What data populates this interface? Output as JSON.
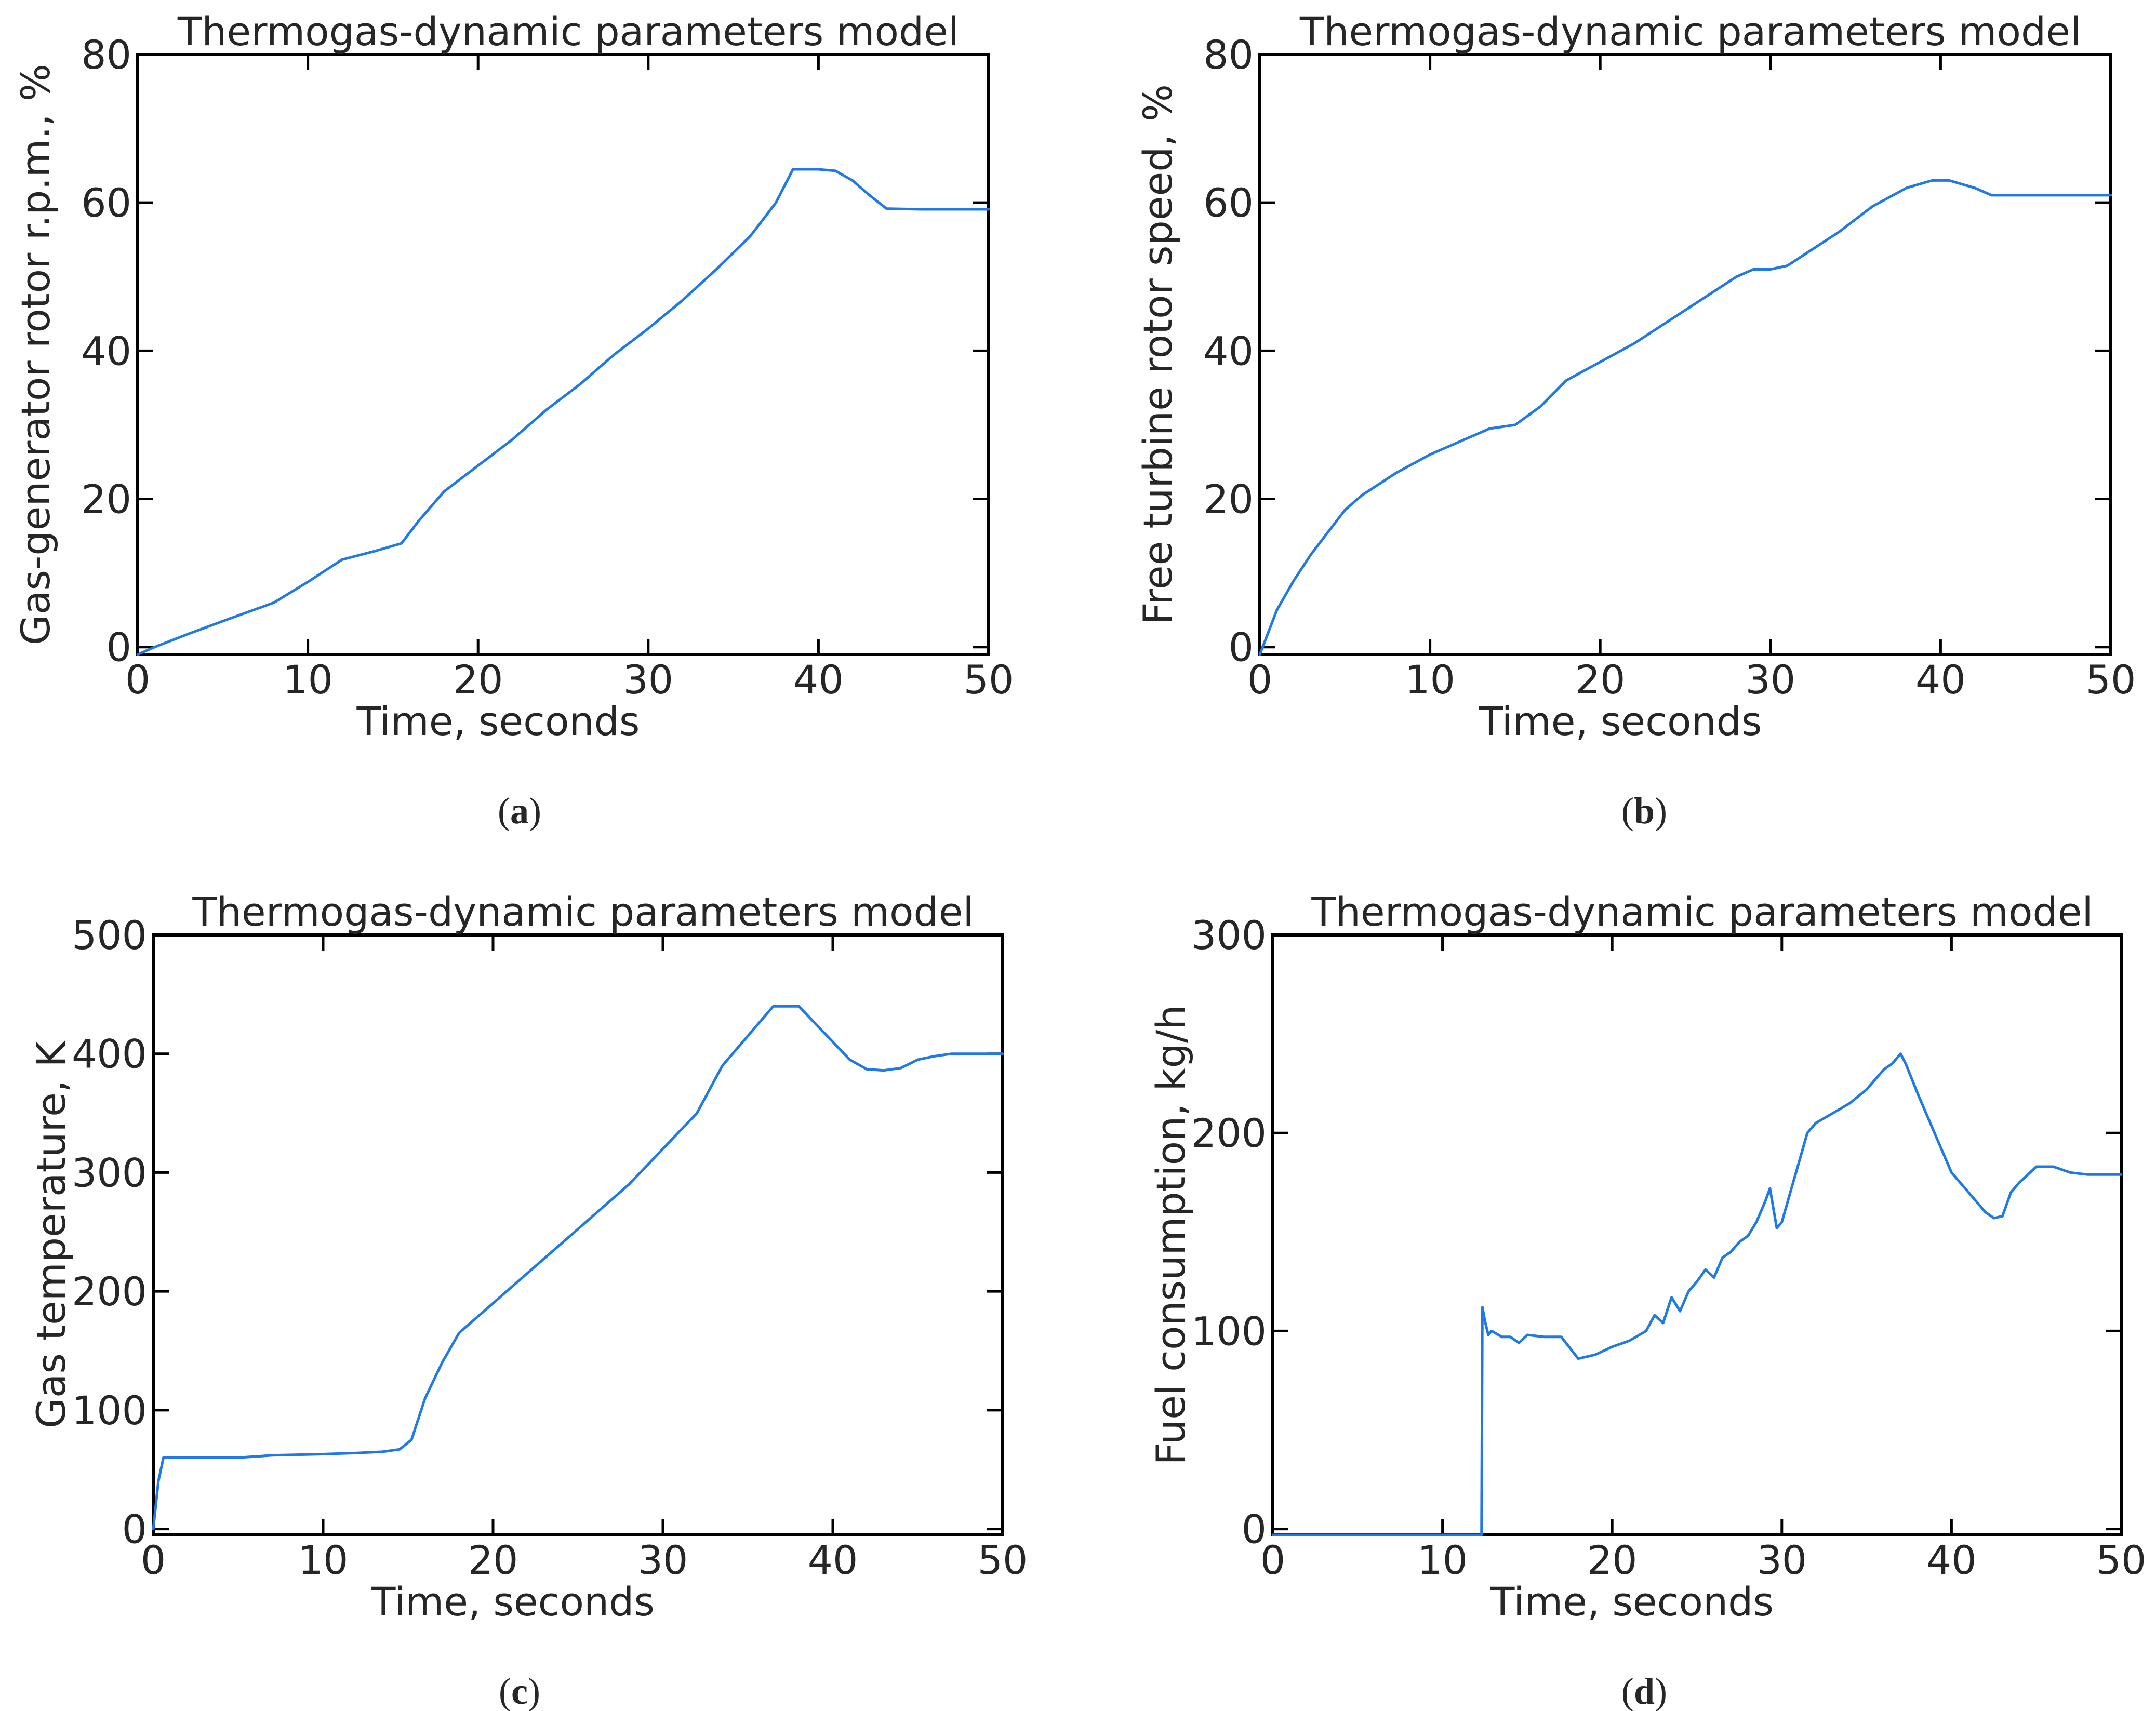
{
  "colors": {
    "series": "#1f7ae6",
    "axes": "#000000",
    "text": "#262626"
  },
  "captions": [
    "a",
    "b",
    "c",
    "d"
  ],
  "chart_data": [
    {
      "type": "line",
      "title": "Thermogas-dynamic parameters model",
      "xlabel": "Time, seconds",
      "ylabel": "Gas-generator rotor r.p.m., %",
      "xlim": [
        0,
        50
      ],
      "ylim": [
        -1,
        80
      ],
      "xticks": [
        0,
        10,
        20,
        30,
        40,
        50
      ],
      "yticks": [
        0,
        20,
        40,
        60,
        80
      ],
      "grid": false,
      "series": [
        {
          "x": [
            0,
            1,
            3,
            5,
            8,
            10,
            12,
            14,
            15.5,
            16.5,
            18,
            20,
            22,
            24,
            26,
            28,
            30,
            32,
            34,
            36,
            37.5,
            38.5,
            40,
            41,
            42,
            43,
            44,
            46,
            48,
            50
          ],
          "values": [
            -1,
            0,
            1.8,
            3.5,
            6,
            8.8,
            11.8,
            13,
            14,
            17,
            21,
            24.5,
            28,
            32,
            35.5,
            39.5,
            43,
            46.8,
            51,
            55.5,
            60,
            64.5,
            64.5,
            64.3,
            63,
            61,
            59.2,
            59.1,
            59.1,
            59.1
          ]
        }
      ]
    },
    {
      "type": "line",
      "title": "Thermogas-dynamic parameters model",
      "xlabel": "Time, seconds",
      "ylabel": "Free turbine rotor speed, %",
      "xlim": [
        0,
        50
      ],
      "ylim": [
        -1,
        80
      ],
      "xticks": [
        0,
        10,
        20,
        30,
        40,
        50
      ],
      "yticks": [
        0,
        20,
        40,
        60,
        80
      ],
      "grid": false,
      "series": [
        {
          "x": [
            0,
            0.5,
            1,
            2,
            3,
            4,
            5,
            6,
            8,
            10,
            12,
            13.5,
            15,
            16.5,
            18,
            20,
            22,
            24,
            26,
            28,
            29,
            30,
            31,
            32,
            34,
            36,
            38,
            39.5,
            40.5,
            42,
            43,
            45,
            50
          ],
          "values": [
            -1,
            2,
            5,
            9,
            12.5,
            15.5,
            18.5,
            20.5,
            23.5,
            26,
            28,
            29.5,
            30,
            32.5,
            36,
            38.5,
            41,
            44,
            47,
            50,
            51,
            51,
            51.5,
            53,
            56,
            59.5,
            62,
            63,
            63,
            62,
            61,
            61,
            61
          ]
        }
      ]
    },
    {
      "type": "line",
      "title": "Thermogas-dynamic parameters model",
      "xlabel": "Time, seconds",
      "ylabel": "Gas temperature, K",
      "xlim": [
        0,
        50
      ],
      "ylim": [
        -5,
        500
      ],
      "xticks": [
        0,
        10,
        20,
        30,
        40,
        50
      ],
      "yticks": [
        0,
        100,
        200,
        300,
        400,
        500
      ],
      "grid": false,
      "series": [
        {
          "x": [
            0,
            0.3,
            0.6,
            2,
            5,
            7,
            10,
            12,
            13.5,
            14.5,
            15.2,
            16,
            17,
            18,
            20,
            22,
            24,
            26,
            28,
            30,
            32,
            33.5,
            35,
            36.5,
            38,
            39,
            40,
            41,
            42,
            43,
            44,
            45,
            46,
            47,
            48,
            50
          ],
          "values": [
            0,
            40,
            60,
            60,
            60,
            62,
            63,
            64,
            65,
            67,
            75,
            110,
            140,
            165,
            190,
            215,
            240,
            265,
            290,
            320,
            350,
            390,
            415,
            440,
            440,
            425,
            410,
            395,
            387,
            386,
            388,
            395,
            398,
            400,
            400,
            400
          ]
        }
      ]
    },
    {
      "type": "line",
      "title": "Thermogas-dynamic parameters model",
      "xlabel": "Time, seconds",
      "ylabel": "Fuel consumption, kg/h",
      "xlim": [
        0,
        50
      ],
      "ylim": [
        -3,
        300
      ],
      "xticks": [
        0,
        10,
        20,
        30,
        40,
        50
      ],
      "yticks": [
        0,
        100,
        200,
        300
      ],
      "grid": false,
      "series": [
        {
          "x": [
            0,
            12.3,
            12.35,
            12.5,
            12.7,
            12.9,
            13.5,
            14,
            14.5,
            15,
            16,
            17,
            18,
            19,
            20,
            21,
            22,
            22.5,
            23,
            23.5,
            24,
            24.5,
            25,
            25.5,
            26,
            26.5,
            27,
            27.5,
            28,
            28.5,
            29,
            29.3,
            29.7,
            30,
            30.5,
            31,
            31.5,
            32,
            33,
            34,
            35,
            36,
            36.5,
            37,
            37.3,
            38,
            39,
            40,
            41,
            42,
            42.5,
            43,
            43.5,
            44,
            45,
            46,
            47,
            48,
            50
          ],
          "values": [
            -3,
            -3,
            112,
            105,
            98,
            100,
            97,
            97,
            94,
            98,
            97,
            97,
            86,
            88,
            92,
            95,
            100,
            108,
            104,
            117,
            110,
            120,
            125,
            131,
            127,
            137,
            140,
            145,
            148,
            155,
            165,
            172,
            152,
            155,
            170,
            185,
            200,
            205,
            210,
            215,
            222,
            232,
            235,
            240,
            235,
            220,
            200,
            180,
            170,
            160,
            157,
            158,
            170,
            175,
            183,
            183,
            180,
            179,
            179
          ]
        }
      ]
    }
  ]
}
